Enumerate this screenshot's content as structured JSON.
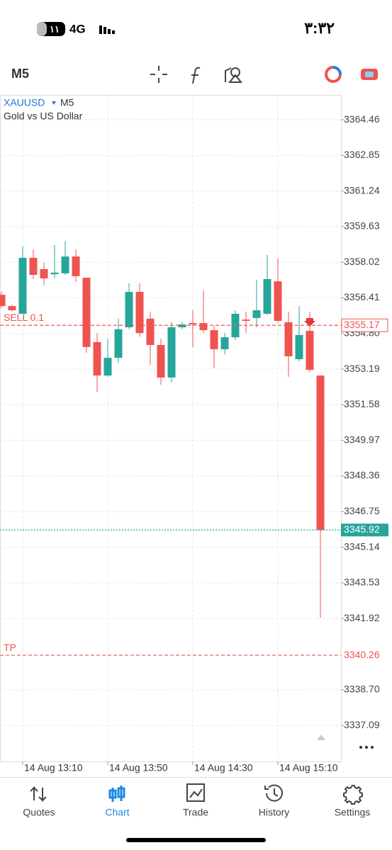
{
  "status_bar": {
    "time": "۳:۳۲",
    "battery": "۱۱",
    "network": "4G"
  },
  "toolbar": {
    "timeframe": "M5"
  },
  "chart_data": {
    "type": "candlestick",
    "symbol": "XAUUSD",
    "timeframe": "M5",
    "subtitle": "Gold vs US Dollar",
    "categories": [
      null,
      null,
      "14 Aug 13:10",
      null,
      null,
      null,
      null,
      null,
      null,
      null,
      "14 Aug 13:50",
      null,
      null,
      null,
      null,
      null,
      null,
      null,
      "14 Aug 14:30",
      null,
      null,
      null,
      null,
      null,
      null,
      null,
      "14 Aug 15:10",
      null,
      null,
      null,
      null
    ],
    "open": [
      3356.55,
      3356.04,
      3355.69,
      3358.22,
      3357.71,
      3357.48,
      3357.52,
      3358.28,
      3357.32,
      3354.41,
      3352.9,
      3353.7,
      3355.08,
      3356.68,
      3355.47,
      3354.28,
      3352.81,
      3355.08,
      3355.27,
      3355.27,
      3354.95,
      3354.09,
      3354.63,
      3355.43,
      3355.5,
      3355.69,
      3357.16,
      3355.31,
      3353.64,
      3354.92,
      3352.9
    ],
    "high": [
      3356.7,
      3356.1,
      3358.73,
      3358.6,
      3358.0,
      3358.8,
      3358.99,
      3358.6,
      3357.32,
      3354.82,
      3354.57,
      3355.47,
      3357.07,
      3357.07,
      3355.79,
      3354.57,
      3355.31,
      3355.31,
      3355.85,
      3356.74,
      3355.15,
      3354.82,
      3355.85,
      3355.79,
      3357.23,
      3358.35,
      3358.19,
      3355.79,
      3356.04,
      3355.79,
      3352.9
    ],
    "low": [
      3355.95,
      3355.8,
      3355.69,
      3357.26,
      3357.0,
      3357.3,
      3357.45,
      3357.13,
      3353.93,
      3352.17,
      3352.84,
      3353.48,
      3354.99,
      3354.66,
      3353.38,
      3352.49,
      3352.59,
      3354.99,
      3354.18,
      3354.82,
      3353.22,
      3353.86,
      3354.5,
      3354.82,
      3355.08,
      3355.63,
      3355.27,
      3352.84,
      3353.54,
      3353.06,
      3341.96
    ],
    "close": [
      3356.04,
      3355.85,
      3358.22,
      3357.45,
      3357.29,
      3357.55,
      3358.28,
      3357.39,
      3354.19,
      3352.9,
      3353.7,
      3354.99,
      3356.68,
      3354.82,
      3354.28,
      3352.81,
      3355.08,
      3355.21,
      3355.21,
      3354.95,
      3354.09,
      3354.63,
      3355.69,
      3355.37,
      3355.85,
      3357.26,
      3355.37,
      3353.77,
      3354.73,
      3353.16,
      3345.92
    ],
    "up_color": "#26a69a",
    "down_color": "#ef5350",
    "ylim": [
      3335.46,
      3365.55
    ],
    "yticks": [
      3364.46,
      3362.85,
      3361.24,
      3359.63,
      3358.02,
      3356.41,
      {
        "value": 3354.8,
        "label": "3354.80"
      },
      3353.19,
      3351.58,
      3349.97,
      3348.36,
      3346.75,
      3345.14,
      3343.53,
      3341.92,
      {
        "value": 3338.7,
        "label": "3338.70"
      },
      3337.09
    ],
    "grid": true,
    "lines": [
      {
        "label": "SELL 0.1",
        "value": 3355.17,
        "color": "#ef5350"
      },
      {
        "value": 3345.92,
        "color": "#26a69a"
      },
      {
        "label": "TP",
        "value": 3340.26,
        "color": "#ef5350"
      }
    ]
  },
  "tab_bar": {
    "tabs": [
      "Quotes",
      "Chart",
      "Trade",
      "History",
      "Settings"
    ],
    "active_tab": 1
  }
}
